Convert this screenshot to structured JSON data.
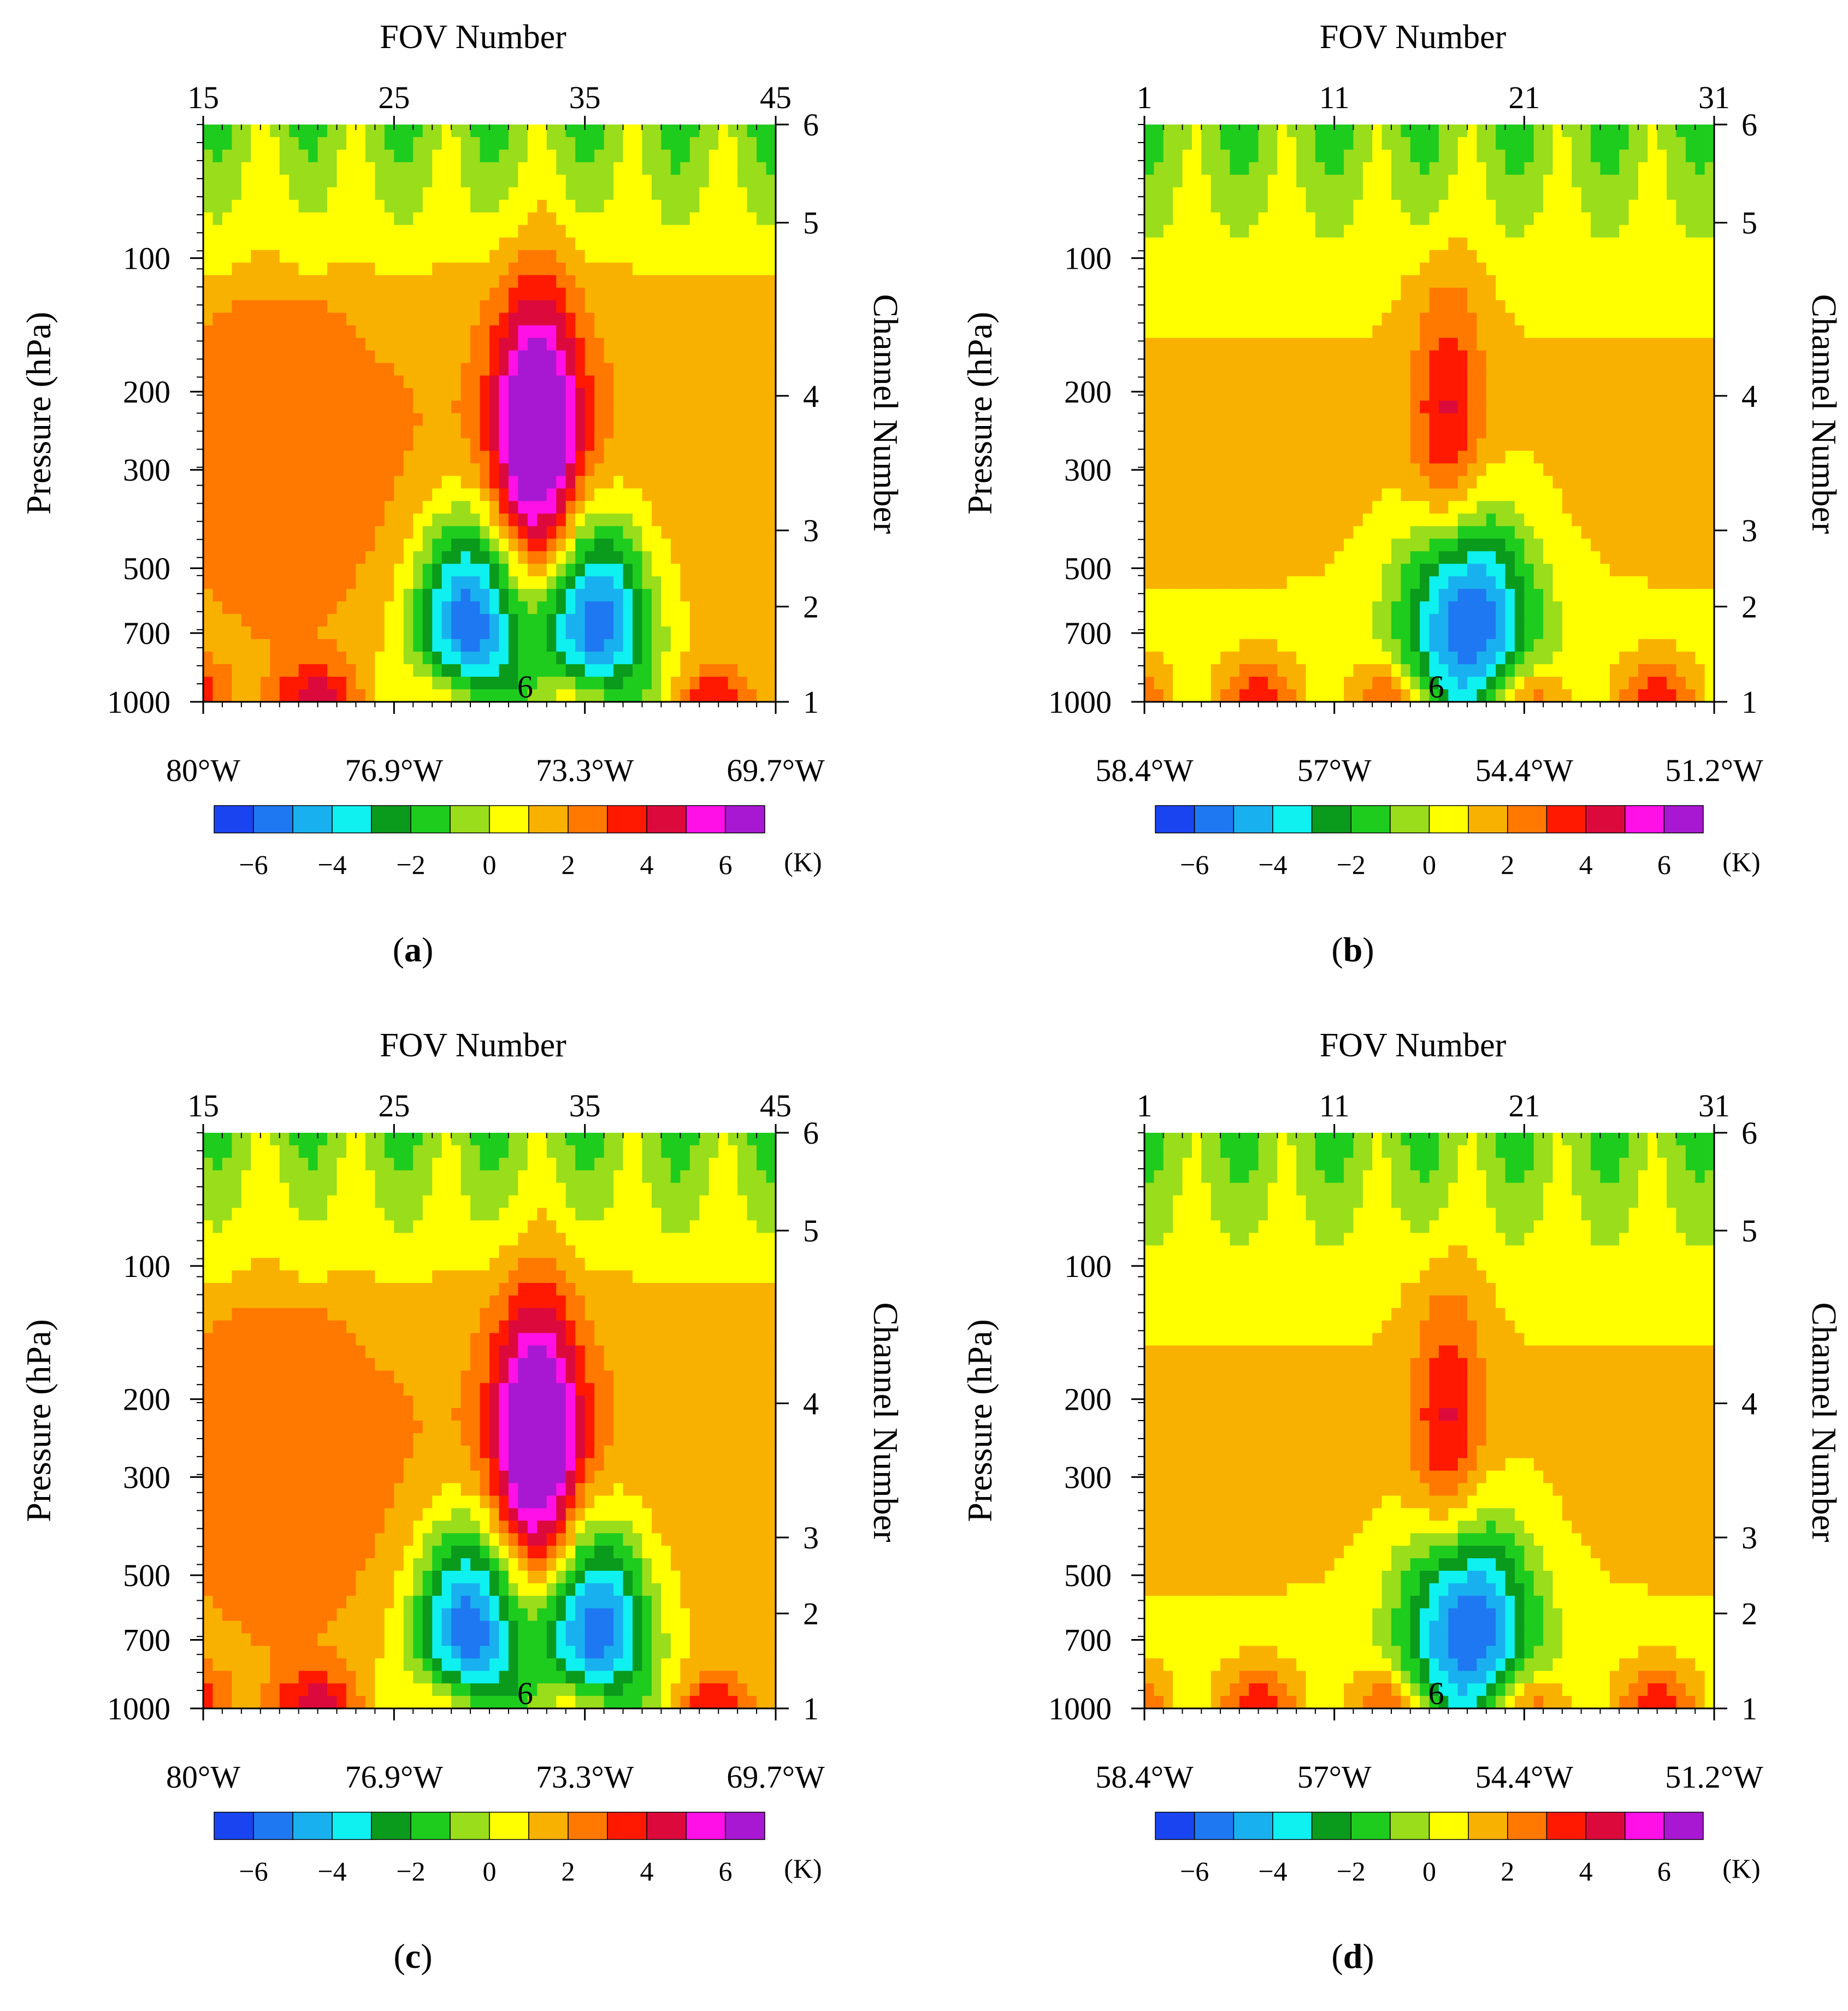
{
  "figure": {
    "colorbar": {
      "unit": "(K)",
      "ticks": [
        "−6",
        "−4",
        "−2",
        "0",
        "2",
        "4",
        "6"
      ],
      "colors": [
        "#1a44f0",
        "#1e78f2",
        "#19b0f0",
        "#0ff0f0",
        "#0a9a1c",
        "#1ecc1e",
        "#9add1a",
        "#ffff00",
        "#f9b100",
        "#ff7800",
        "#ff1900",
        "#dc0a3c",
        "#ff10e6",
        "#a818d2"
      ]
    }
  },
  "chart_data": [
    {
      "type": "heatmap",
      "panel": "(a)",
      "label_letter": "a",
      "top_title": "FOV Number",
      "top_ticks": [
        "15",
        "25",
        "35",
        "45"
      ],
      "top_range": [
        15,
        45
      ],
      "bottom_ticks": [
        "80°W",
        "76.9°W",
        "73.3°W",
        "69.7°W"
      ],
      "left_label": "Pressure (hPa)",
      "left_ticks": [
        "100",
        "200",
        "300",
        "500",
        "700",
        "1000"
      ],
      "left_range_hPa": [
        1000,
        50
      ],
      "right_label": "Channel Number",
      "right_ticks": [
        "6",
        "5",
        "4",
        "3",
        "2",
        "1"
      ],
      "center_marker": "6",
      "value_units": "K",
      "warm_core": {
        "fov_center": 32.5,
        "peak_pressure_hPa": 250,
        "max_K": 7
      },
      "cold_lobes": [
        {
          "fov_center": 29,
          "pressure_hPa": 650,
          "min_K": -7
        },
        {
          "fov_center": 35.5,
          "pressure_hPa": 650,
          "min_K": -7
        }
      ]
    },
    {
      "type": "heatmap",
      "panel": "(b)",
      "label_letter": "b",
      "top_title": "FOV Number",
      "top_ticks": [
        "1",
        "11",
        "21",
        "31"
      ],
      "top_range": [
        1,
        31
      ],
      "bottom_ticks": [
        "58.4°W",
        "57°W",
        "54.4°W",
        "51.2°W"
      ],
      "left_label": "Pressure (hPa)",
      "left_ticks": [
        "100",
        "200",
        "300",
        "500",
        "700",
        "1000"
      ],
      "left_range_hPa": [
        1000,
        50
      ],
      "right_label": "Channel Number",
      "right_ticks": [
        "6",
        "5",
        "4",
        "3",
        "2",
        "1"
      ],
      "center_marker": "6",
      "value_units": "K",
      "warm_core": {
        "fov_center": 17,
        "peak_pressure_hPa": 230,
        "max_K": 3
      },
      "cold_lobes": [
        {
          "fov_center": 18,
          "pressure_hPa": 650,
          "min_K": -7
        }
      ]
    },
    {
      "type": "heatmap",
      "panel": "(c)",
      "label_letter": "c",
      "top_title": "FOV Number",
      "top_ticks": [
        "15",
        "25",
        "35",
        "45"
      ],
      "top_range": [
        15,
        45
      ],
      "bottom_ticks": [
        "80°W",
        "76.9°W",
        "73.3°W",
        "69.7°W"
      ],
      "left_label": "Pressure (hPa)",
      "left_ticks": [
        "100",
        "200",
        "300",
        "500",
        "700",
        "1000"
      ],
      "left_range_hPa": [
        1000,
        50
      ],
      "right_label": "Channel Number",
      "right_ticks": [
        "6",
        "5",
        "4",
        "3",
        "2",
        "1"
      ],
      "center_marker": "6",
      "value_units": "K",
      "warm_core": {
        "fov_center": 32.5,
        "peak_pressure_hPa": 250,
        "max_K": 7
      },
      "cold_lobes": [
        {
          "fov_center": 29,
          "pressure_hPa": 650,
          "min_K": -7
        },
        {
          "fov_center": 35.5,
          "pressure_hPa": 650,
          "min_K": -7
        }
      ]
    },
    {
      "type": "heatmap",
      "panel": "(d)",
      "label_letter": "d",
      "top_title": "FOV Number",
      "top_ticks": [
        "1",
        "11",
        "21",
        "31"
      ],
      "top_range": [
        1,
        31
      ],
      "bottom_ticks": [
        "58.4°W",
        "57°W",
        "54.4°W",
        "51.2°W"
      ],
      "left_label": "Pressure (hPa)",
      "left_ticks": [
        "100",
        "200",
        "300",
        "500",
        "700",
        "1000"
      ],
      "left_range_hPa": [
        1000,
        50
      ],
      "right_label": "Channel Number",
      "right_ticks": [
        "6",
        "5",
        "4",
        "3",
        "2",
        "1"
      ],
      "center_marker": "6",
      "value_units": "K",
      "warm_core": {
        "fov_center": 17,
        "peak_pressure_hPa": 230,
        "max_K": 3
      },
      "cold_lobes": [
        {
          "fov_center": 18,
          "pressure_hPa": 650,
          "min_K": -7
        }
      ]
    }
  ]
}
